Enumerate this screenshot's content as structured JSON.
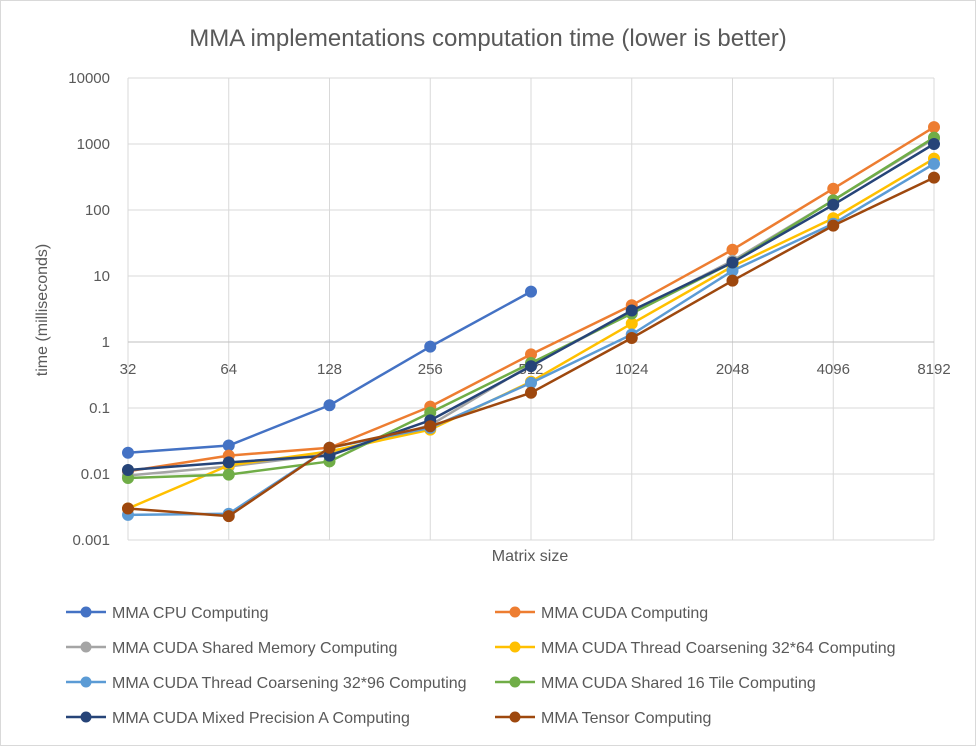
{
  "chart_data": {
    "type": "line",
    "title": "MMA implementations computation time (lower is better)",
    "xlabel": "Matrix size",
    "ylabel": "time (milliseconds)",
    "y_scale": "log",
    "ylim": [
      0.001,
      10000
    ],
    "y_ticks": [
      "0.001",
      "0.01",
      "0.1",
      "1",
      "10",
      "100",
      "1000",
      "10000"
    ],
    "categories": [
      "32",
      "64",
      "128",
      "256",
      "512",
      "1024",
      "2048",
      "4096",
      "8192"
    ],
    "grid": true,
    "legend_position": "bottom",
    "series": [
      {
        "name": "MMA CPU Computing",
        "color": "#4472c4",
        "values": [
          0.021,
          0.027,
          0.11,
          0.85,
          5.8,
          null,
          null,
          null,
          null
        ]
      },
      {
        "name": "MMA CUDA Computing",
        "color": "#ed7d31",
        "values": [
          0.011,
          0.019,
          0.025,
          0.105,
          0.65,
          3.6,
          25,
          210,
          1800
        ]
      },
      {
        "name": "MMA CUDA Shared Memory Computing",
        "color": "#a5a5a5",
        "values": [
          0.0095,
          0.013,
          0.02,
          0.055,
          0.45,
          2.8,
          17,
          140,
          1200
        ]
      },
      {
        "name": "MMA CUDA Thread Coarsening 32*64 Computing",
        "color": "#ffc000",
        "values": [
          0.003,
          0.0135,
          0.022,
          0.047,
          0.25,
          1.9,
          14,
          75,
          600
        ]
      },
      {
        "name": "MMA CUDA Thread Coarsening 32*96 Computing",
        "color": "#5b9bd5",
        "values": [
          0.0024,
          0.0025,
          0.025,
          0.05,
          0.24,
          1.3,
          12,
          62,
          500
        ]
      },
      {
        "name": "MMA CUDA Shared 16 Tile Computing",
        "color": "#70ad47",
        "values": [
          0.0087,
          0.0098,
          0.0155,
          0.085,
          0.48,
          2.7,
          16,
          140,
          1250
        ]
      },
      {
        "name": "MMA CUDA Mixed Precision A Computing",
        "color": "#264478",
        "values": [
          0.0115,
          0.015,
          0.019,
          0.065,
          0.43,
          3.0,
          16,
          120,
          1000
        ]
      },
      {
        "name": "MMA Tensor Computing",
        "color": "#9e480e",
        "values": [
          0.003,
          0.0023,
          0.025,
          0.053,
          0.17,
          1.15,
          8.5,
          58,
          310
        ]
      }
    ]
  }
}
